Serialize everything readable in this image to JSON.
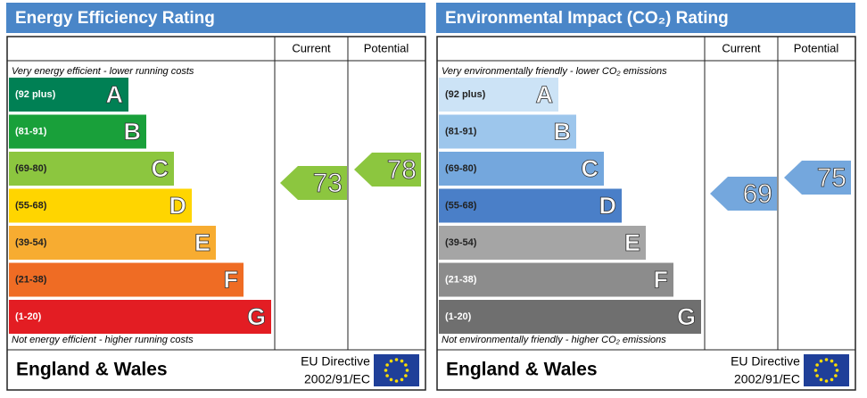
{
  "panels": [
    {
      "title": "Energy Efficiency Rating",
      "columns": [
        "Current",
        "Potential"
      ],
      "top_note": "Very energy efficient - lower running costs",
      "bottom_note": "Not energy efficient - higher running costs",
      "bands": [
        {
          "range": "(92 plus)",
          "letter": "A",
          "color": "#008054",
          "text_color": "#ffffff"
        },
        {
          "range": "(81-91)",
          "letter": "B",
          "color": "#19a03a",
          "text_color": "#ffffff"
        },
        {
          "range": "(69-80)",
          "letter": "C",
          "color": "#8cc63f",
          "text_color": "#222222"
        },
        {
          "range": "(55-68)",
          "letter": "D",
          "color": "#ffd500",
          "text_color": "#222222"
        },
        {
          "range": "(39-54)",
          "letter": "E",
          "color": "#f7ac31",
          "text_color": "#222222"
        },
        {
          "range": "(21-38)",
          "letter": "F",
          "color": "#ef6c24",
          "text_color": "#222222"
        },
        {
          "range": "(1-20)",
          "letter": "G",
          "color": "#e31d23",
          "text_color": "#ffffff"
        }
      ],
      "current": 73,
      "potential": 78,
      "arrow_color": "#8cc63f",
      "region": "England & Wales",
      "directive": "EU Directive",
      "directive_code": "2002/91/EC"
    },
    {
      "title": "Environmental Impact (CO₂) Rating",
      "columns": [
        "Current",
        "Potential"
      ],
      "top_note": "Very environmentally friendly - lower CO₂ emissions",
      "bottom_note": "Not environmentally friendly - higher CO₂ emissions",
      "bands": [
        {
          "range": "(92 plus)",
          "letter": "A",
          "color": "#cce3f6",
          "text_color": "#222222"
        },
        {
          "range": "(81-91)",
          "letter": "B",
          "color": "#9dc6ec",
          "text_color": "#222222"
        },
        {
          "range": "(69-80)",
          "letter": "C",
          "color": "#74a7dd",
          "text_color": "#222222"
        },
        {
          "range": "(55-68)",
          "letter": "D",
          "color": "#4a7fc8",
          "text_color": "#222222"
        },
        {
          "range": "(39-54)",
          "letter": "E",
          "color": "#a5a5a5",
          "text_color": "#222222"
        },
        {
          "range": "(21-38)",
          "letter": "F",
          "color": "#8c8c8c",
          "text_color": "#ffffff"
        },
        {
          "range": "(1-20)",
          "letter": "G",
          "color": "#6f6f6f",
          "text_color": "#ffffff"
        }
      ],
      "current": 69,
      "potential": 75,
      "arrow_color": "#74a7dd",
      "region": "England & Wales",
      "directive": "EU Directive",
      "directive_code": "2002/91/EC"
    }
  ]
}
